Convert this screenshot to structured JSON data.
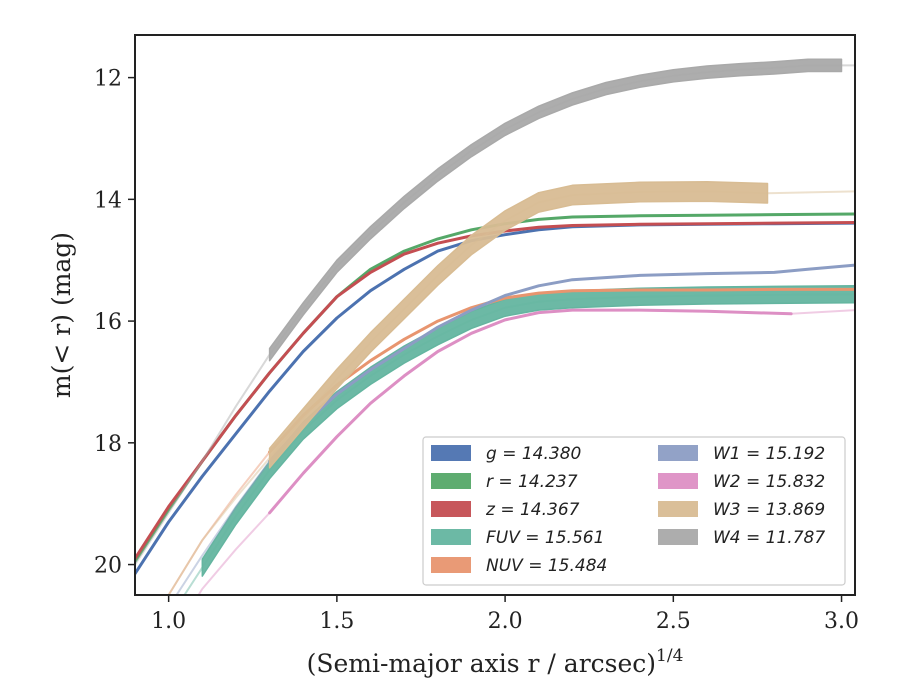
{
  "chart_data": {
    "type": "line",
    "xlabel": "(Semi-major axis r / arcsec)",
    "xlabel_exp": "1/4",
    "ylabel": "m(< r) (mag)",
    "xlim": [
      0.9,
      3.04
    ],
    "ylim": [
      20.5,
      11.3
    ],
    "y_inverted": true,
    "xticks": [
      1.0,
      1.5,
      2.0,
      2.5,
      3.0
    ],
    "xtick_labels": [
      "1.0",
      "1.5",
      "2.0",
      "2.5",
      "3.0"
    ],
    "yticks": [
      12,
      14,
      16,
      18,
      20
    ],
    "ytick_labels": [
      "12",
      "14",
      "16",
      "18",
      "20"
    ],
    "grid": false,
    "legend_placement": "lower-right",
    "legend_columns": 2,
    "series": [
      {
        "name": "g = 14.380",
        "color": "#4c72b0",
        "x": [
          0.9,
          1.0,
          1.1,
          1.2,
          1.3,
          1.4,
          1.5,
          1.6,
          1.7,
          1.8,
          1.9,
          2.0,
          2.1,
          2.2,
          2.4,
          2.6,
          2.8,
          3.04
        ],
        "y": [
          20.15,
          19.3,
          18.55,
          17.85,
          17.15,
          16.5,
          15.95,
          15.5,
          15.15,
          14.85,
          14.68,
          14.58,
          14.5,
          14.45,
          14.42,
          14.41,
          14.4,
          14.39
        ],
        "thick_x": [
          0.9,
          3.04
        ],
        "fill": false
      },
      {
        "name": "r = 14.237",
        "color": "#55a868",
        "x": [
          0.9,
          1.0,
          1.1,
          1.2,
          1.3,
          1.4,
          1.5,
          1.6,
          1.7,
          1.8,
          1.9,
          2.0,
          2.1,
          2.2,
          2.4,
          2.6,
          2.8,
          3.04
        ],
        "y": [
          19.95,
          19.1,
          18.3,
          17.55,
          16.85,
          16.2,
          15.6,
          15.15,
          14.85,
          14.65,
          14.5,
          14.4,
          14.33,
          14.29,
          14.27,
          14.26,
          14.25,
          14.24
        ],
        "thick_x": [
          0.9,
          3.04
        ],
        "fill": false
      },
      {
        "name": "z = 14.367",
        "color": "#c44e52",
        "x": [
          0.9,
          1.0,
          1.1,
          1.2,
          1.3,
          1.4,
          1.5,
          1.6,
          1.7,
          1.8,
          1.9,
          2.0,
          2.1,
          2.2,
          2.4,
          2.6,
          2.8,
          3.04
        ],
        "y": [
          19.9,
          19.05,
          18.3,
          17.55,
          16.85,
          16.2,
          15.6,
          15.2,
          14.9,
          14.72,
          14.6,
          14.52,
          14.46,
          14.43,
          14.41,
          14.4,
          14.39,
          14.38
        ],
        "thick_x": [
          0.9,
          3.04
        ],
        "fill": false
      },
      {
        "name": "FUV = 15.561",
        "color": "#64b5a0",
        "x": [
          1.0,
          1.1,
          1.2,
          1.3,
          1.4,
          1.5,
          1.6,
          1.7,
          1.8,
          1.9,
          2.0,
          2.1,
          2.2,
          2.4,
          2.6,
          2.8,
          3.04
        ],
        "y": [
          20.9,
          20.05,
          19.2,
          18.45,
          17.8,
          17.3,
          16.9,
          16.55,
          16.25,
          15.98,
          15.78,
          15.68,
          15.64,
          15.6,
          15.58,
          15.57,
          15.56
        ],
        "thick_x": [
          1.1,
          3.04
        ],
        "fill": true,
        "band": 0.28
      },
      {
        "name": "NUV = 15.484",
        "color": "#e8956f",
        "x": [
          0.95,
          1.0,
          1.1,
          1.2,
          1.3,
          1.4,
          1.5,
          1.6,
          1.7,
          1.8,
          1.9,
          2.0,
          2.1,
          2.2,
          2.4,
          2.6,
          2.8,
          3.04
        ],
        "y": [
          21.0,
          20.5,
          19.6,
          18.85,
          18.15,
          17.55,
          17.05,
          16.65,
          16.3,
          16.0,
          15.78,
          15.62,
          15.54,
          15.5,
          15.49,
          15.49,
          15.48,
          15.48
        ],
        "thick_x": [
          1.3,
          3.04
        ],
        "fill": false
      },
      {
        "name": "W1 = 15.192",
        "color": "#8c9dc4",
        "x": [
          1.0,
          1.1,
          1.2,
          1.3,
          1.4,
          1.5,
          1.6,
          1.7,
          1.8,
          1.9,
          2.0,
          2.1,
          2.2,
          2.4,
          2.6,
          2.8,
          2.9,
          3.04
        ],
        "y": [
          20.7,
          19.85,
          19.05,
          18.3,
          17.7,
          17.2,
          16.8,
          16.45,
          16.1,
          15.82,
          15.58,
          15.42,
          15.32,
          15.25,
          15.22,
          15.2,
          15.15,
          15.08
        ],
        "thick_x": [
          1.3,
          3.04
        ],
        "fill": false
      },
      {
        "name": "W2 = 15.832",
        "color": "#dd8fc4",
        "x": [
          1.0,
          1.1,
          1.2,
          1.3,
          1.4,
          1.5,
          1.6,
          1.7,
          1.8,
          1.9,
          2.0,
          2.1,
          2.2,
          2.4,
          2.6,
          2.85,
          3.04
        ],
        "y": [
          21.3,
          20.4,
          19.75,
          19.15,
          18.5,
          17.9,
          17.35,
          16.9,
          16.5,
          16.2,
          15.98,
          15.86,
          15.82,
          15.82,
          15.84,
          15.88,
          15.82
        ],
        "thick_x": [
          1.3,
          2.85
        ],
        "fill": false
      },
      {
        "name": "W3 = 13.869",
        "color": "#d8bc93",
        "x": [
          1.0,
          1.1,
          1.2,
          1.3,
          1.4,
          1.5,
          1.6,
          1.7,
          1.8,
          1.9,
          2.0,
          2.1,
          2.2,
          2.4,
          2.6,
          2.78,
          3.04
        ],
        "y": [
          20.5,
          19.6,
          18.9,
          18.25,
          17.6,
          16.95,
          16.35,
          15.8,
          15.25,
          14.75,
          14.35,
          14.05,
          13.93,
          13.88,
          13.87,
          13.9,
          13.87
        ],
        "thick_x": [
          1.3,
          2.78
        ],
        "fill": true,
        "band": 0.32
      },
      {
        "name": "W4 = 11.787",
        "color": "#a9a9a9",
        "x": [
          0.9,
          1.0,
          1.1,
          1.2,
          1.3,
          1.4,
          1.5,
          1.6,
          1.7,
          1.8,
          1.9,
          2.0,
          2.1,
          2.2,
          2.3,
          2.4,
          2.5,
          2.6,
          2.7,
          2.8,
          2.9,
          3.0,
          3.04
        ],
        "y": [
          20.0,
          19.15,
          18.3,
          17.4,
          16.55,
          15.8,
          15.1,
          14.55,
          14.05,
          13.6,
          13.2,
          12.85,
          12.57,
          12.35,
          12.18,
          12.06,
          11.97,
          11.91,
          11.87,
          11.84,
          11.8,
          11.8,
          11.8
        ],
        "thick_x": [
          1.3,
          3.0
        ],
        "fill": true,
        "band": 0.2
      }
    ]
  }
}
